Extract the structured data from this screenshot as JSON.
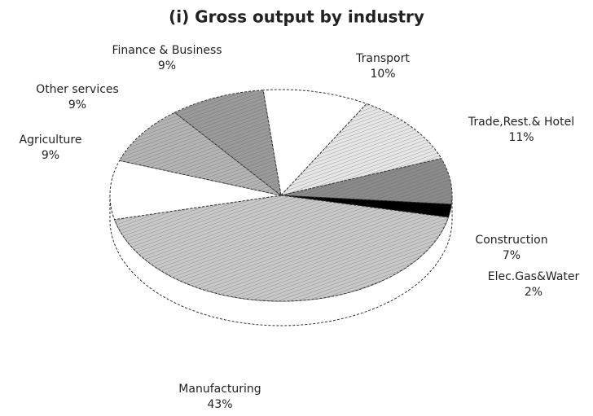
{
  "chart_data": {
    "type": "pie",
    "title": "(i) Gross output by industry",
    "categories": [
      "Transport",
      "Trade,Rest.& Hotel",
      "Construction",
      "Elec.Gas&Water",
      "Manufacturing",
      "Agriculture",
      "Other services",
      "Finance & Business"
    ],
    "values": [
      10,
      11,
      7,
      2,
      43,
      9,
      9,
      9
    ],
    "value_labels": [
      "10%",
      "11%",
      "7%",
      "2%",
      "43%",
      "9%",
      "9%",
      "9%"
    ],
    "colors": [
      "#ffffff",
      "#e6e6e6",
      "#8a8a8a",
      "#000000",
      "#c8c8c8",
      "#ffffff",
      "#b4b4b4",
      "#9a9a9a"
    ]
  }
}
